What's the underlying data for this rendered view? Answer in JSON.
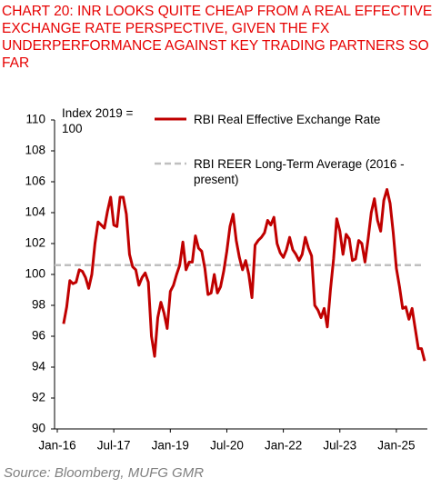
{
  "chart_data": {
    "type": "line",
    "title": "CHART 20: INR LOOKS QUITE CHEAP FROM A REAL EFFECTIVE EXCHANGE RATE PERSPECTIVE, GIVEN THE FX UNDERPERFORMANCE AGAINST KEY TRADING PARTNERS SO FAR",
    "y_label": "Index 2019 = 100",
    "source": "Source: Bloomberg, MUFG GMR",
    "categories": [
      "Jan-16",
      null,
      null,
      null,
      null,
      null,
      null,
      null,
      null,
      null,
      null,
      null,
      null,
      null,
      null,
      null,
      null,
      null,
      "Jul-17",
      null,
      null,
      null,
      null,
      null,
      null,
      null,
      null,
      null,
      null,
      null,
      null,
      null,
      null,
      null,
      null,
      null,
      "Jan-19",
      null,
      null,
      null,
      null,
      null,
      null,
      null,
      null,
      null,
      null,
      null,
      null,
      null,
      null,
      null,
      null,
      null,
      "Jul-20",
      null,
      null,
      null,
      null,
      null,
      null,
      null,
      null,
      null,
      null,
      null,
      null,
      null,
      null,
      null,
      null,
      null,
      "Jan-22",
      null,
      null,
      null,
      null,
      null,
      null,
      null,
      null,
      null,
      null,
      null,
      null,
      null,
      null,
      null,
      null,
      null,
      "Jul-23",
      null,
      null,
      null,
      null,
      null,
      null,
      null,
      null,
      null,
      null,
      null,
      null,
      null,
      null,
      null,
      null,
      null,
      "Jan-25",
      null,
      null,
      null,
      null,
      null,
      null,
      null,
      null,
      null
    ],
    "series": [
      {
        "name": "RBI Real Effective Exchange Rate",
        "color": "#c00000",
        "values": [
          null,
          null,
          96.8,
          97.9,
          99.6,
          99.4,
          99.5,
          100.3,
          100.2,
          99.8,
          99.1,
          100.0,
          102.0,
          103.4,
          103.2,
          103.0,
          104.1,
          105.0,
          103.2,
          103.1,
          105.0,
          105.0,
          103.9,
          101.3,
          100.5,
          100.3,
          99.3,
          99.8,
          100.1,
          99.5,
          96.0,
          94.7,
          97.2,
          98.2,
          97.5,
          96.5,
          98.9,
          99.3,
          100.0,
          100.6,
          102.1,
          100.3,
          100.8,
          100.8,
          102.5,
          101.7,
          101.5,
          100.4,
          98.7,
          98.8,
          100.0,
          98.8,
          99.2,
          100.2,
          101.5,
          103.1,
          103.9,
          102.2,
          101.1,
          100.3,
          100.9,
          100.0,
          98.5,
          101.9,
          102.2,
          102.4,
          102.7,
          103.5,
          103.2,
          103.7,
          102.0,
          101.4,
          101.1,
          101.6,
          102.4,
          101.6,
          101.3,
          100.9,
          101.3,
          102.4,
          101.7,
          101.2,
          98.0,
          97.7,
          97.2,
          97.8,
          96.6,
          99.0,
          101.0,
          103.6,
          102.8,
          101.3,
          102.6,
          102.3,
          100.9,
          101.0,
          102.2,
          102.0,
          100.8,
          102.3,
          104.0,
          104.9,
          103.5,
          102.8,
          104.8,
          105.5,
          104.6,
          102.7,
          100.4,
          99.2,
          97.8,
          97.9,
          97.1,
          97.8,
          96.5,
          95.2,
          95.2,
          94.4
        ]
      }
    ],
    "reference": {
      "name": "RBI REER Long-Term Average (2016 - present)",
      "value": 100.6,
      "color": "#bfbfbf",
      "dashed": true
    },
    "ylim": [
      90,
      110
    ],
    "yticks": [
      90,
      92,
      94,
      96,
      98,
      100,
      102,
      104,
      106,
      108,
      110
    ],
    "grid": false
  }
}
